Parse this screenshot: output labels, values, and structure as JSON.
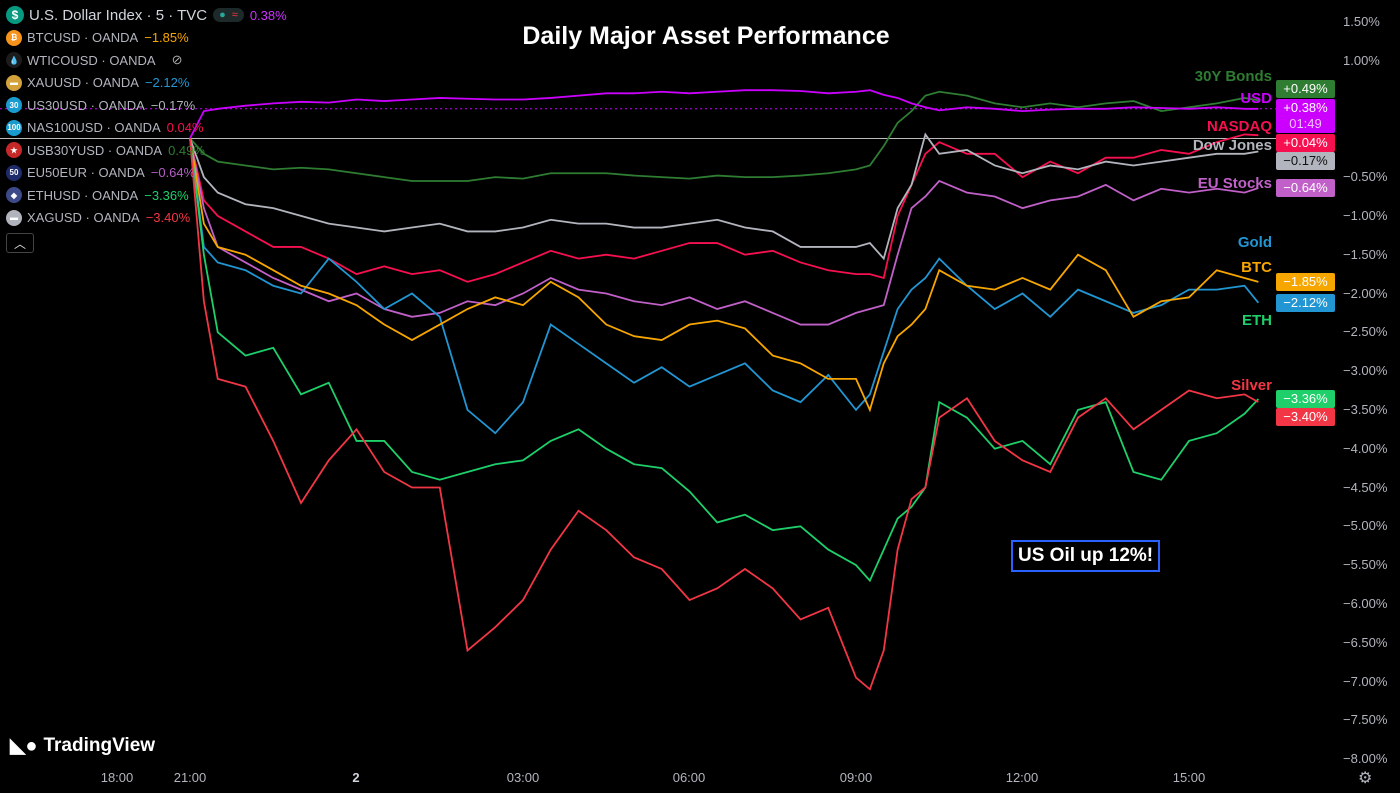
{
  "title": "Daily Major Asset Performance",
  "annotation": "US Oil up 12%!",
  "logo_text": "TradingView",
  "legend": {
    "main": {
      "name": "U.S. Dollar Index · 5 · TVC",
      "value": "0.38%",
      "icon": "dollar-icon",
      "color": "#cc33ff"
    },
    "items": [
      {
        "name": "BTCUSD · OANDA",
        "value": "−1.85%",
        "color": "#f7a600",
        "icon": "bitcoin-icon",
        "icon_bg": "#f7931a",
        "glyph": "₿"
      },
      {
        "name": "WTICOUSD · OANDA",
        "value": "",
        "color": "#787b86",
        "icon": "oil-drop-icon",
        "icon_bg": "#1c1c1c",
        "glyph": "💧",
        "hidden_icon": "eye-off-icon"
      },
      {
        "name": "XAUUSD · OANDA",
        "value": "−2.12%",
        "color": "#2196d3",
        "icon": "gold-bars-icon",
        "icon_bg": "#d4a23a",
        "glyph": "▬"
      },
      {
        "name": "US30USD · OANDA",
        "value": "−0.17%",
        "color": "#b2b5be",
        "icon": "us30-icon",
        "icon_bg": "#1a9bd0",
        "glyph": "30"
      },
      {
        "name": "NAS100USD · OANDA",
        "value": "0.04%",
        "color": "#f7104f",
        "icon": "nas100-icon",
        "icon_bg": "#1a9bd0",
        "glyph": "100"
      },
      {
        "name": "USB30YUSD · OANDA",
        "value": "0.49%",
        "color": "#2e7d32",
        "icon": "us-flag-icon",
        "icon_bg": "#c62828",
        "glyph": "★"
      },
      {
        "name": "EU50EUR · OANDA",
        "value": "−0.64%",
        "color": "#b55ec7",
        "icon": "eu50-icon",
        "icon_bg": "#1f2a6b",
        "glyph": "50"
      },
      {
        "name": "ETHUSD · OANDA",
        "value": "−3.36%",
        "color": "#1ecf6a",
        "icon": "ethereum-icon",
        "icon_bg": "#3c4a8a",
        "glyph": "◆"
      },
      {
        "name": "XAGUSD · OANDA",
        "value": "−3.40%",
        "color": "#f23645",
        "icon": "silver-bars-icon",
        "icon_bg": "#b0b3bb",
        "glyph": "▬"
      }
    ]
  },
  "chart_data": {
    "type": "line",
    "title": "Daily Major Asset Performance",
    "ylabel": "",
    "xlabel": "",
    "ylim": [
      -8.0,
      1.5
    ],
    "y_unit": "%",
    "grid": false,
    "legend": "top-left",
    "x_ticks": [
      "18:00",
      "21:00",
      "2",
      "03:00",
      "06:00",
      "09:00",
      "12:00",
      "15:00"
    ],
    "y_ticks": [
      "1.50%",
      "1.00%",
      "−0.50%",
      "−1.00%",
      "−1.50%",
      "−2.00%",
      "−2.50%",
      "−3.00%",
      "−3.50%",
      "−4.00%",
      "−4.50%",
      "−5.00%",
      "−5.50%",
      "−6.00%",
      "−6.50%",
      "−7.00%",
      "−7.50%",
      "−8.00%"
    ],
    "x": [
      "21:00",
      "21:15",
      "21:30",
      "22:00",
      "22:30",
      "23:00",
      "23:30",
      "00:00",
      "00:30",
      "01:00",
      "01:30",
      "02:00",
      "02:30",
      "03:00",
      "03:30",
      "04:00",
      "04:30",
      "05:00",
      "05:30",
      "06:00",
      "06:30",
      "07:00",
      "07:30",
      "08:00",
      "08:30",
      "09:00",
      "09:15",
      "09:30",
      "09:45",
      "10:00",
      "10:15",
      "10:30",
      "11:00",
      "11:30",
      "12:00",
      "12:30",
      "13:00",
      "13:30",
      "14:00",
      "14:30",
      "15:00",
      "15:30",
      "16:00",
      "16:15"
    ],
    "series": [
      {
        "name": "30Y Bonds",
        "color": "#2e7d32",
        "last": "+0.49%",
        "values": [
          0,
          -0.2,
          -0.3,
          -0.35,
          -0.4,
          -0.38,
          -0.4,
          -0.45,
          -0.5,
          -0.55,
          -0.55,
          -0.55,
          -0.5,
          -0.52,
          -0.45,
          -0.45,
          -0.45,
          -0.48,
          -0.5,
          -0.52,
          -0.48,
          -0.5,
          -0.5,
          -0.48,
          -0.45,
          -0.4,
          -0.35,
          -0.1,
          0.2,
          0.35,
          0.55,
          0.6,
          0.55,
          0.45,
          0.4,
          0.45,
          0.4,
          0.45,
          0.48,
          0.35,
          0.4,
          0.45,
          0.52,
          0.49
        ]
      },
      {
        "name": "USD",
        "color": "#cc00ff",
        "last": "+0.38%",
        "countdown": "01:49",
        "values": [
          0,
          0.35,
          0.38,
          0.42,
          0.45,
          0.47,
          0.46,
          0.5,
          0.48,
          0.5,
          0.52,
          0.51,
          0.5,
          0.5,
          0.52,
          0.55,
          0.58,
          0.58,
          0.6,
          0.58,
          0.6,
          0.62,
          0.62,
          0.61,
          0.58,
          0.6,
          0.62,
          0.56,
          0.52,
          0.45,
          0.4,
          0.36,
          0.4,
          0.38,
          0.35,
          0.37,
          0.38,
          0.38,
          0.4,
          0.39,
          0.38,
          0.4,
          0.38,
          0.38
        ]
      },
      {
        "name": "NASDAQ",
        "color": "#f7104f",
        "last": "+0.04%",
        "values": [
          0,
          -0.8,
          -1.0,
          -1.2,
          -1.4,
          -1.4,
          -1.55,
          -1.75,
          -1.65,
          -1.75,
          -1.7,
          -1.85,
          -1.75,
          -1.6,
          -1.45,
          -1.55,
          -1.5,
          -1.55,
          -1.45,
          -1.35,
          -1.35,
          -1.5,
          -1.45,
          -1.6,
          -1.7,
          -1.75,
          -1.75,
          -1.8,
          -1.0,
          -0.6,
          -0.2,
          -0.05,
          -0.2,
          -0.2,
          -0.5,
          -0.3,
          -0.45,
          -0.25,
          -0.25,
          -0.15,
          -0.2,
          -0.05,
          0.05,
          0.04
        ]
      },
      {
        "name": "Dow Jones",
        "color": "#b2b5be",
        "last": "−0.17%",
        "values": [
          0,
          -0.5,
          -0.7,
          -0.85,
          -0.9,
          -1.0,
          -1.1,
          -1.15,
          -1.2,
          -1.15,
          -1.1,
          -1.2,
          -1.2,
          -1.15,
          -1.05,
          -1.1,
          -1.1,
          -1.15,
          -1.15,
          -1.1,
          -1.05,
          -1.15,
          -1.2,
          -1.4,
          -1.4,
          -1.4,
          -1.35,
          -1.55,
          -0.9,
          -0.6,
          0.05,
          -0.2,
          -0.15,
          -0.35,
          -0.45,
          -0.35,
          -0.4,
          -0.3,
          -0.35,
          -0.3,
          -0.25,
          -0.2,
          -0.2,
          -0.17
        ]
      },
      {
        "name": "EU Stocks",
        "color": "#c060c8",
        "last": "−0.64%",
        "values": [
          0,
          -0.9,
          -1.4,
          -1.6,
          -1.8,
          -1.95,
          -2.1,
          -2.0,
          -2.2,
          -2.3,
          -2.25,
          -2.1,
          -2.15,
          -2.0,
          -1.8,
          -1.95,
          -2.0,
          -2.1,
          -2.15,
          -2.05,
          -2.2,
          -2.1,
          -2.25,
          -2.4,
          -2.4,
          -2.25,
          -2.2,
          -2.15,
          -1.5,
          -0.9,
          -0.75,
          -0.55,
          -0.7,
          -0.75,
          -0.9,
          -0.8,
          -0.75,
          -0.6,
          -0.8,
          -0.65,
          -0.7,
          -0.65,
          -0.7,
          -0.64
        ]
      },
      {
        "name": "Gold",
        "color": "#2196d3",
        "last": "−2.12%",
        "values": [
          0,
          -1.4,
          -1.6,
          -1.7,
          -1.9,
          -2.0,
          -1.55,
          -1.85,
          -2.2,
          -2.0,
          -2.3,
          -3.5,
          -3.8,
          -3.4,
          -2.4,
          -2.65,
          -2.9,
          -3.15,
          -2.95,
          -3.2,
          -3.05,
          -2.9,
          -3.25,
          -3.4,
          -3.05,
          -3.5,
          -3.3,
          -2.75,
          -2.2,
          -1.95,
          -1.8,
          -1.55,
          -1.9,
          -2.2,
          -2.0,
          -2.3,
          -1.95,
          -2.1,
          -2.25,
          -2.15,
          -1.95,
          -1.95,
          -1.9,
          -2.12
        ]
      },
      {
        "name": "BTC",
        "color": "#f7a600",
        "last": "−1.85%",
        "values": [
          0,
          -1.1,
          -1.4,
          -1.5,
          -1.7,
          -1.9,
          -2.0,
          -2.15,
          -2.4,
          -2.6,
          -2.4,
          -2.2,
          -2.05,
          -2.15,
          -1.85,
          -2.05,
          -2.4,
          -2.55,
          -2.6,
          -2.4,
          -2.35,
          -2.45,
          -2.8,
          -2.9,
          -3.1,
          -3.1,
          -3.5,
          -2.9,
          -2.55,
          -2.4,
          -2.2,
          -1.7,
          -1.9,
          -1.95,
          -1.8,
          -1.95,
          -1.5,
          -1.7,
          -2.3,
          -2.1,
          -2.05,
          -1.7,
          -1.8,
          -1.85
        ]
      },
      {
        "name": "ETH",
        "color": "#1ecf6a",
        "last": "−3.36%",
        "values": [
          0,
          -1.5,
          -2.5,
          -2.8,
          -2.7,
          -3.3,
          -3.15,
          -3.9,
          -3.9,
          -4.3,
          -4.4,
          -4.3,
          -4.2,
          -4.15,
          -3.9,
          -3.75,
          -4.0,
          -4.2,
          -4.25,
          -4.55,
          -4.95,
          -4.85,
          -5.05,
          -5.0,
          -5.3,
          -5.5,
          -5.7,
          -5.3,
          -4.9,
          -4.75,
          -4.5,
          -3.4,
          -3.6,
          -4.0,
          -3.9,
          -4.2,
          -3.5,
          -3.4,
          -4.3,
          -4.4,
          -3.9,
          -3.8,
          -3.55,
          -3.36
        ]
      },
      {
        "name": "Silver",
        "color": "#f23645",
        "last": "−3.40%",
        "values": [
          0,
          -2.1,
          -3.1,
          -3.2,
          -3.9,
          -4.7,
          -4.15,
          -3.75,
          -4.3,
          -4.5,
          -4.5,
          -6.6,
          -6.3,
          -5.95,
          -5.3,
          -4.8,
          -5.05,
          -5.4,
          -5.55,
          -5.95,
          -5.8,
          -5.55,
          -5.8,
          -6.2,
          -6.05,
          -6.95,
          -7.1,
          -6.6,
          -5.3,
          -4.65,
          -4.5,
          -3.6,
          -3.35,
          -3.9,
          -4.15,
          -4.3,
          -3.6,
          -3.35,
          -3.75,
          -3.5,
          -3.25,
          -3.35,
          -3.3,
          -3.4
        ]
      }
    ]
  }
}
